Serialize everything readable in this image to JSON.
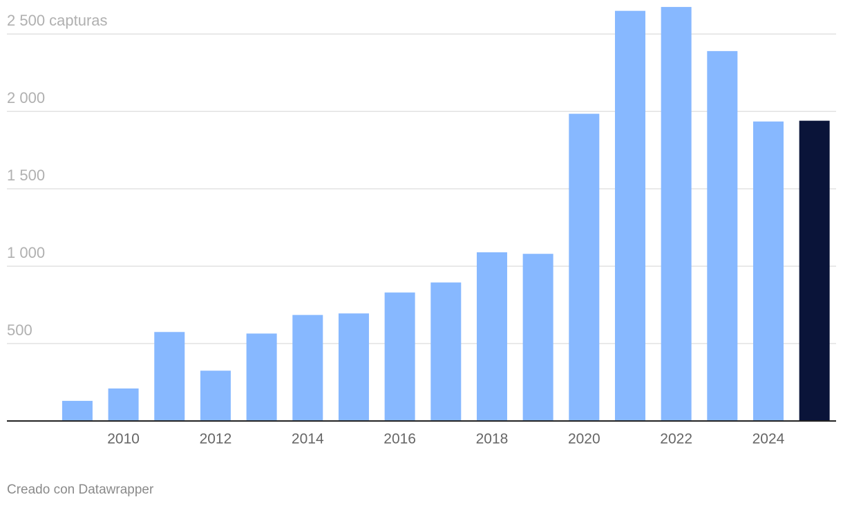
{
  "chart_data": {
    "type": "bar",
    "categories": [
      null,
      "2010",
      null,
      "2012",
      null,
      "2014",
      null,
      "2016",
      null,
      "2018",
      null,
      "2020",
      null,
      "2022",
      null,
      "2024",
      null
    ],
    "values": [
      130,
      210,
      575,
      325,
      565,
      685,
      695,
      830,
      895,
      1090,
      1080,
      1985,
      2650,
      2675,
      2390,
      1935,
      1940
    ],
    "colors": [
      "#87b8ff",
      "#87b8ff",
      "#87b8ff",
      "#87b8ff",
      "#87b8ff",
      "#87b8ff",
      "#87b8ff",
      "#87b8ff",
      "#87b8ff",
      "#87b8ff",
      "#87b8ff",
      "#87b8ff",
      "#87b8ff",
      "#87b8ff",
      "#87b8ff",
      "#87b8ff",
      "#0a1439"
    ],
    "ylim": [
      0,
      2720
    ],
    "yticks": [
      500,
      {
        "value": 1000,
        "label": "1 000"
      },
      {
        "value": 1500,
        "label": "1 500"
      },
      {
        "value": 2000,
        "label": "2 000"
      },
      {
        "value": 2500,
        "label": "2 500 capturas"
      }
    ],
    "grid": true,
    "footer": "Creado con Datawrapper"
  }
}
